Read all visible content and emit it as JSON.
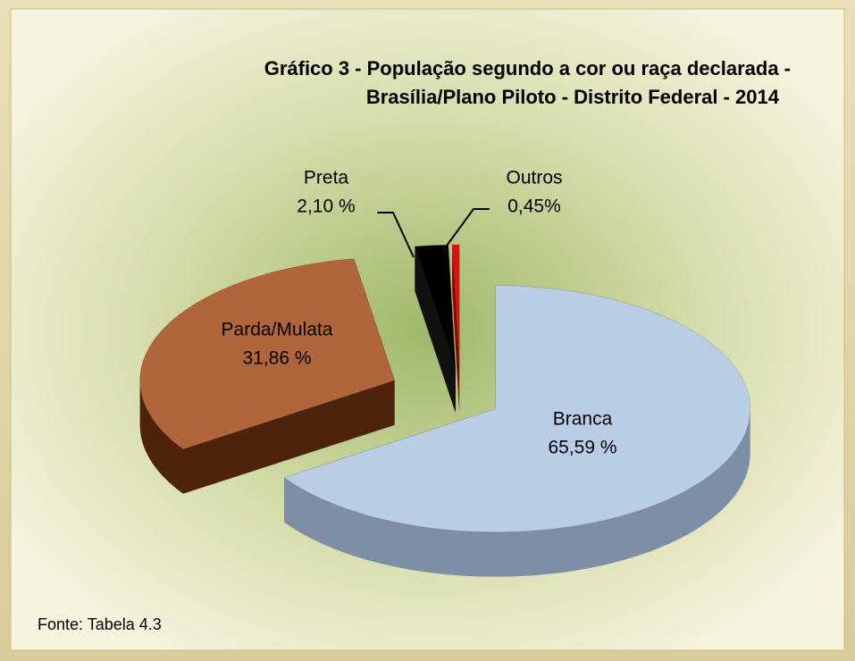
{
  "chart_data": {
    "type": "pie",
    "title": [
      "Gráfico 3 - População segundo a cor ou raça declarada -",
      "Brasília/Plano Piloto - Distrito Federal - 2014"
    ],
    "categories": [
      "Branca",
      "Parda/Mulata",
      "Preta",
      "Outros"
    ],
    "values": [
      65.59,
      31.86,
      2.1,
      0.45
    ],
    "value_labels": [
      "65,59 %",
      "31,86 %",
      "2,10 %",
      "0,45%"
    ],
    "colors": [
      "#b9cde5",
      "#b0653a",
      "#000000",
      "#e01010"
    ],
    "source": "Fonte: Tabela 4.3"
  }
}
